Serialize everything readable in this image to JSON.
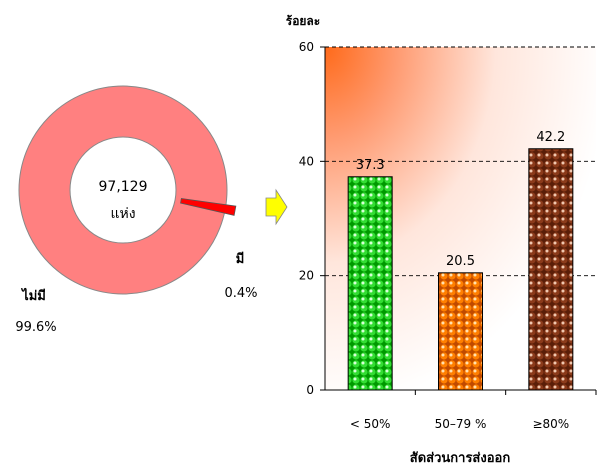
{
  "chart_data": [
    {
      "type": "pie",
      "style": "donut",
      "center_text": [
        "97,129",
        "แห่ง"
      ],
      "slices": [
        {
          "label": "ไม่มี",
          "value": 99.6,
          "value_text": "99.6%",
          "color": "#ff8080"
        },
        {
          "label": "มี",
          "value": 0.4,
          "value_text": "0.4%",
          "color": "#ff0000"
        }
      ]
    },
    {
      "type": "bar",
      "ylabel": "ร้อยละ",
      "xlabel": "สัดส่วนการส่งออก",
      "categories": [
        "< 50%",
        "50–79 %",
        "≥80%"
      ],
      "values": [
        37.3,
        20.5,
        42.2
      ],
      "value_labels": [
        "37.3",
        "20.5",
        "42.2"
      ],
      "bar_colors": [
        "#33dd33",
        "#ff7f00",
        "#8b3a1a"
      ],
      "ylim": [
        0,
        60
      ],
      "yticks": [
        0,
        20,
        40,
        60
      ],
      "grid": true,
      "gridline_style": "dashed",
      "background": "gradient-orange-to-white"
    }
  ],
  "colors": {
    "arrow": "#ffff00",
    "axis": "#000000",
    "donut_outline": "#888888"
  }
}
